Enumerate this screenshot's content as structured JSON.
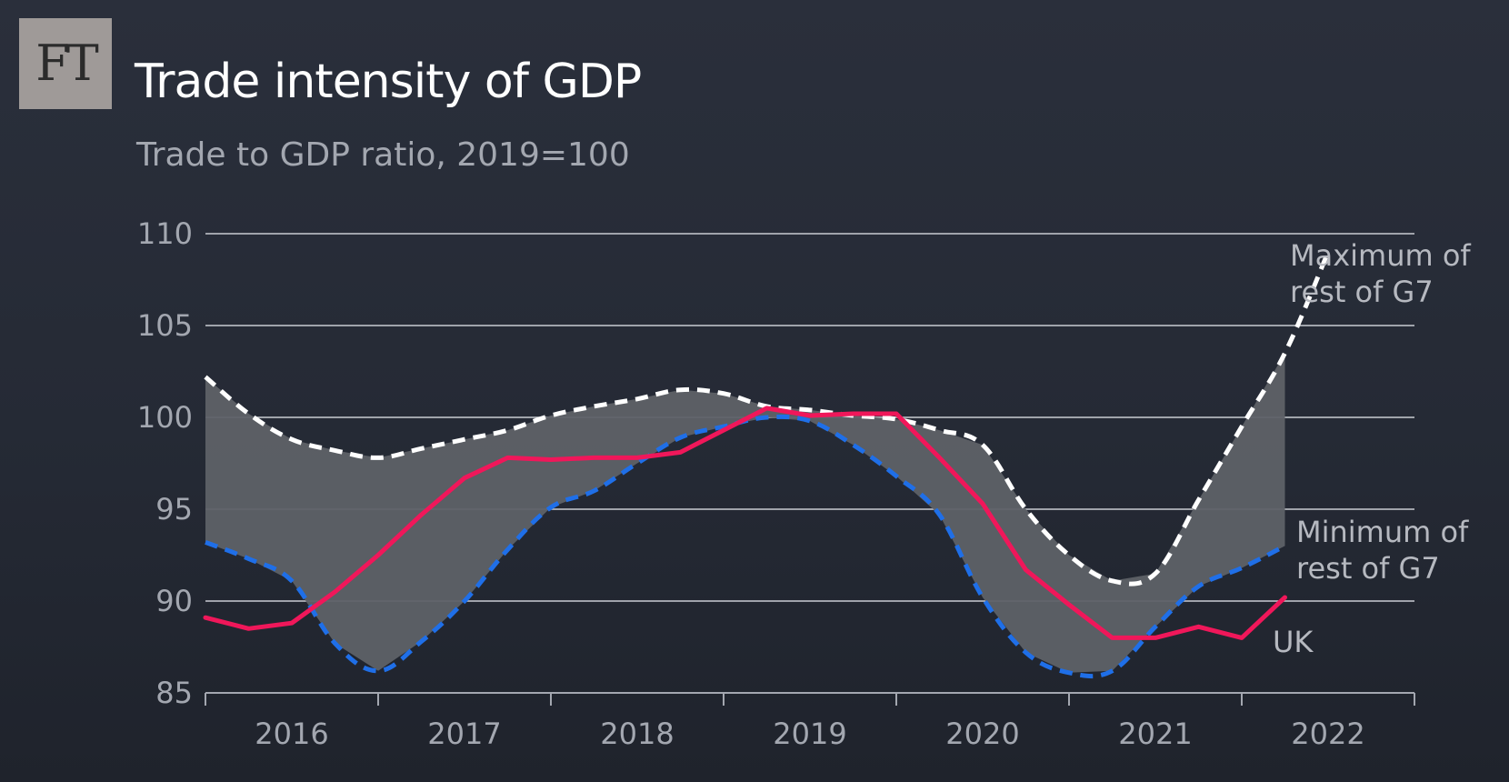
{
  "logo": {
    "text": "FT"
  },
  "header": {
    "title": "Trade intensity of GDP",
    "subtitle": "Trade to GDP ratio, 2019=100"
  },
  "colors": {
    "band": "#5e6167",
    "max_line": "#ffffff",
    "min_line": "#1f6fe8",
    "uk_line": "#f0175a",
    "grid": "#c9ccd2",
    "axis": "#a3a7b0"
  },
  "chart_data": {
    "type": "line",
    "title": "Trade intensity of GDP",
    "subtitle": "Trade to GDP ratio, 2019=100",
    "xlabel": "",
    "ylabel": "",
    "ylim": [
      85,
      110
    ],
    "yticks": [
      "110",
      "105",
      "100",
      "95",
      "90",
      "85"
    ],
    "xlim": [
      2015.5,
      2022.5
    ],
    "x_tick_labels": [
      {
        "year": 2016,
        "label": "2016"
      },
      {
        "year": 2017,
        "label": "2017"
      },
      {
        "year": 2018,
        "label": "2018"
      },
      {
        "year": 2019,
        "label": "2019"
      },
      {
        "year": 2020,
        "label": "2020"
      },
      {
        "year": 2021,
        "label": "2021"
      },
      {
        "year": 2022,
        "label": "2022"
      }
    ],
    "x": [
      2015.5,
      2015.75,
      2016.0,
      2016.25,
      2016.5,
      2016.75,
      2017.0,
      2017.25,
      2017.5,
      2017.75,
      2018.0,
      2018.25,
      2018.5,
      2018.75,
      2019.0,
      2019.25,
      2019.5,
      2019.75,
      2020.0,
      2020.25,
      2020.5,
      2020.75,
      2021.0,
      2021.25,
      2021.5,
      2021.75,
      2022.0,
      2022.25
    ],
    "series": [
      {
        "name": "Maximum of rest of G7",
        "label_line1": "Maximum of",
        "label_line2": "rest of G7",
        "style": "dashed-white",
        "values": [
          102.2,
          100.2,
          98.8,
          98.2,
          97.8,
          98.3,
          98.8,
          99.3,
          100.1,
          100.6,
          101.0,
          101.5,
          101.3,
          100.6,
          100.4,
          100.1,
          99.9,
          99.3,
          98.5,
          95.0,
          92.5,
          91.1,
          91.5,
          95.5,
          99.5,
          103.5,
          109.0,
          null
        ]
      },
      {
        "name": "Minimum of rest of G7",
        "label_line1": "Minimum of",
        "label_line2": "rest of G7",
        "style": "dashed-blue",
        "values": [
          93.2,
          92.3,
          91.1,
          87.7,
          86.2,
          87.8,
          90.0,
          92.8,
          95.1,
          96.0,
          97.5,
          98.9,
          99.5,
          100.0,
          99.8,
          98.5,
          96.8,
          94.7,
          90.2,
          87.2,
          86.1,
          86.2,
          88.6,
          90.8,
          91.8,
          93.0,
          null,
          null
        ]
      },
      {
        "name": "UK",
        "label": "UK",
        "style": "solid-pink",
        "values": [
          89.1,
          88.5,
          88.8,
          90.5,
          92.5,
          94.7,
          96.7,
          97.8,
          97.7,
          97.8,
          97.8,
          98.1,
          99.3,
          100.5,
          100.1,
          100.2,
          100.2,
          97.8,
          95.3,
          91.7,
          89.8,
          88.0,
          88.0,
          88.6,
          88.0,
          90.2,
          null,
          null
        ]
      }
    ]
  }
}
